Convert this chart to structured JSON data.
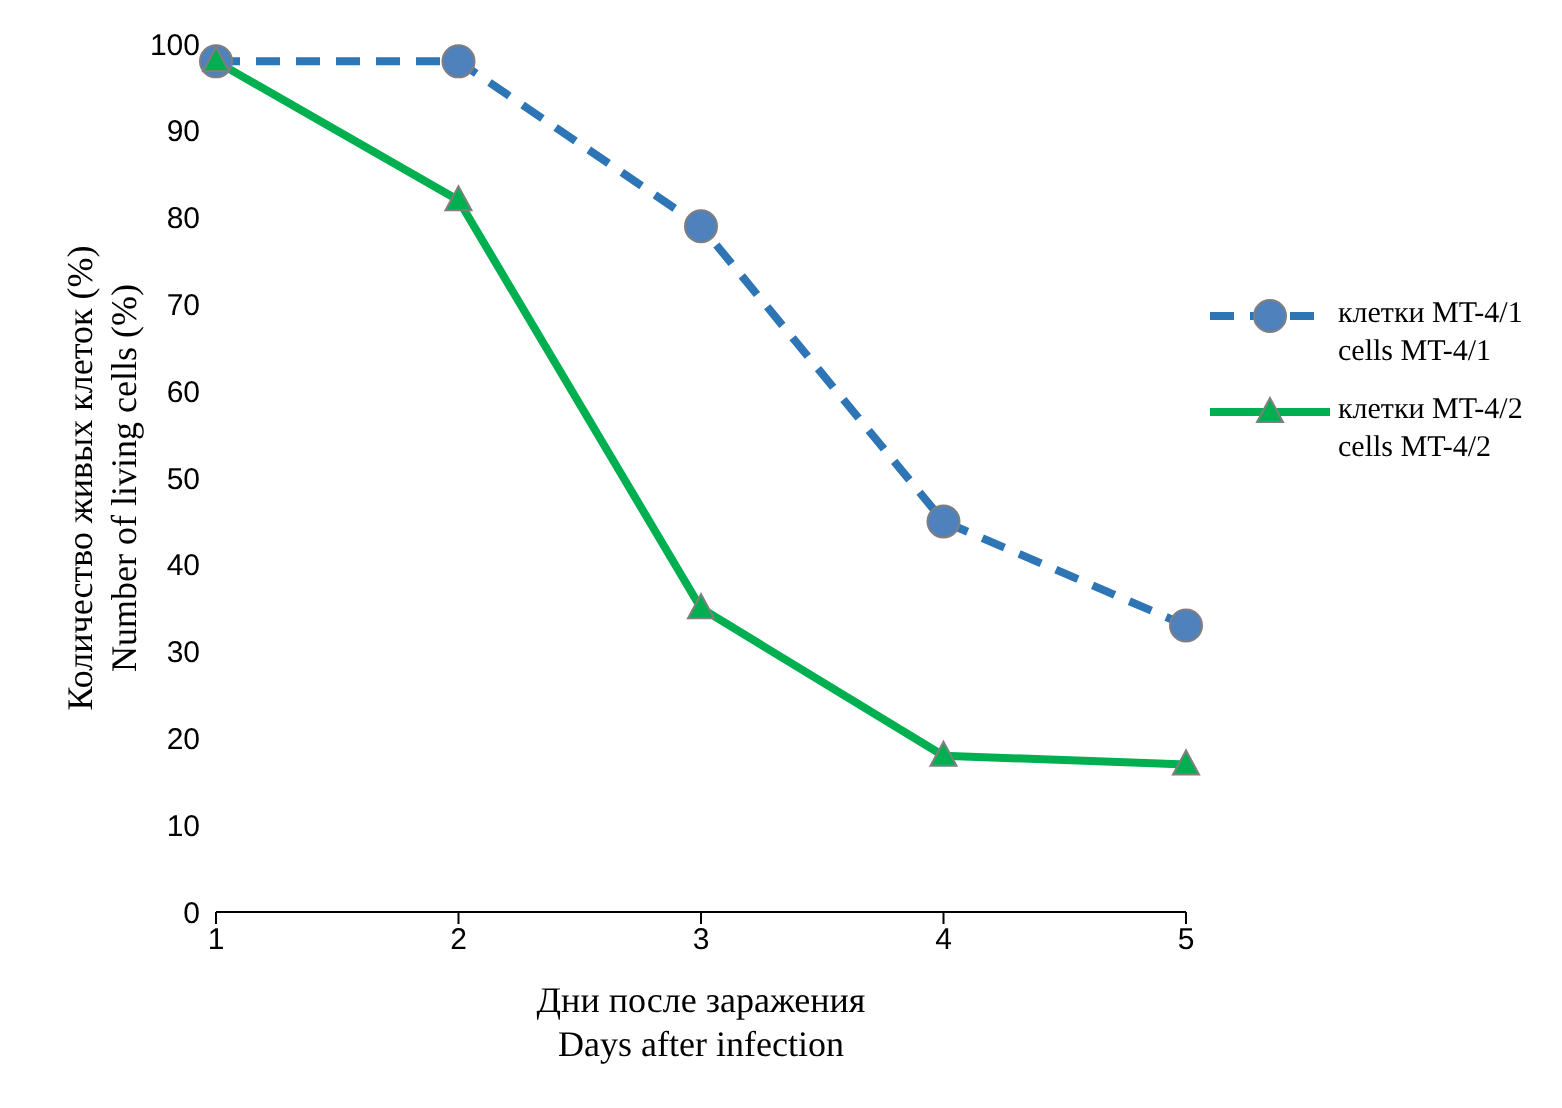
{
  "chart_data": {
    "type": "line",
    "xlabel": "Дни после заражения\nDays after infection",
    "ylabel": "Количество живых клеток (%)\nNumber of living cells (%)",
    "x": [
      1,
      2,
      3,
      4,
      5
    ],
    "xlim": [
      1,
      5
    ],
    "xticks": [
      1,
      2,
      3,
      4,
      5
    ],
    "ylim": [
      0,
      100
    ],
    "yticks": [
      0,
      10,
      20,
      30,
      40,
      50,
      60,
      70,
      80,
      90,
      100
    ],
    "grid": false,
    "legend": "right",
    "series": [
      {
        "name": "клетки MT-4/1\ncells MT-4/1",
        "color": "#2e75b6",
        "values": [
          98,
          98,
          79,
          45,
          33
        ],
        "marker": "circle",
        "line_style": "dashed"
      },
      {
        "name": "клетки MT-4/2\ncells MT-4/2",
        "color": "#00b050",
        "values": [
          98,
          82,
          35,
          18,
          17
        ],
        "marker": "triangle",
        "line_style": "solid"
      }
    ]
  }
}
